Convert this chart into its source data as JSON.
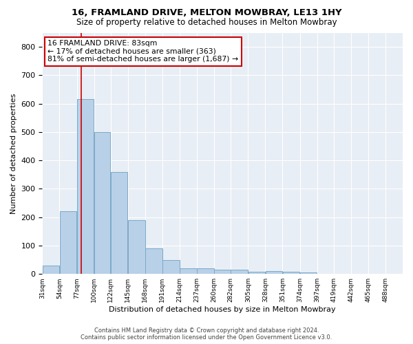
{
  "title1": "16, FRAMLAND DRIVE, MELTON MOWBRAY, LE13 1HY",
  "title2": "Size of property relative to detached houses in Melton Mowbray",
  "xlabel": "Distribution of detached houses by size in Melton Mowbray",
  "ylabel": "Number of detached properties",
  "bar_values": [
    30,
    220,
    615,
    500,
    360,
    190,
    90,
    50,
    20,
    20,
    15,
    15,
    8,
    10,
    8,
    6,
    0,
    0,
    0,
    0,
    0
  ],
  "bin_labels": [
    "31sqm",
    "54sqm",
    "77sqm",
    "100sqm",
    "122sqm",
    "145sqm",
    "168sqm",
    "191sqm",
    "214sqm",
    "237sqm",
    "260sqm",
    "282sqm",
    "305sqm",
    "328sqm",
    "351sqm",
    "374sqm",
    "397sqm",
    "419sqm",
    "442sqm",
    "465sqm",
    "488sqm"
  ],
  "bar_color": "#b8d0e8",
  "bar_edge_color": "#7aaac8",
  "bg_color": "#e8eef5",
  "grid_color": "#ffffff",
  "red_line_color": "#cc0000",
  "annotation_box_text": "16 FRAMLAND DRIVE: 83sqm\n← 17% of detached houses are smaller (363)\n81% of semi-detached houses are larger (1,687) →",
  "annotation_box_facecolor": "#ffffff",
  "annotation_box_edgecolor": "#cc0000",
  "ylim": [
    0,
    850
  ],
  "yticks": [
    0,
    100,
    200,
    300,
    400,
    500,
    600,
    700,
    800
  ],
  "footer1": "Contains HM Land Registry data © Crown copyright and database right 2024.",
  "footer2": "Contains public sector information licensed under the Open Government Licence v3.0."
}
